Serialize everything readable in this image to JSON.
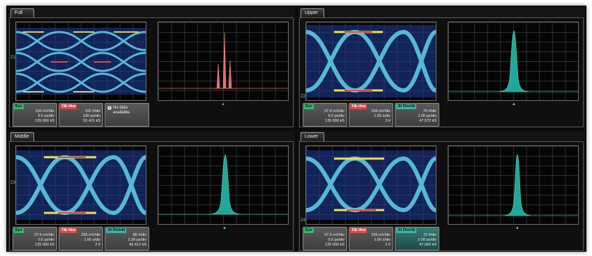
{
  "colors": {
    "accent_green": "#2fbf71",
    "accent_red": "#e04848",
    "accent_teal": "#3ab8a8",
    "hist_teal": "#1fa89a",
    "hist_red": "#e86a6a"
  },
  "icons": {
    "info": "info-icon"
  },
  "quadrants": [
    {
      "tab": "Full",
      "hist_color": "red",
      "marker_ref": "Z1",
      "readouts": [
        {
          "tag": "Eye",
          "lines": [
            "100 mV/div",
            "5.5 ps/div",
            "125 000 kS"
          ]
        },
        {
          "tag": "TIE Hist",
          "lines": [
            "102 #/div",
            "100 ps/div",
            "53 421 kS"
          ]
        },
        {
          "type": "nodata",
          "lines": [
            "No data",
            "available."
          ]
        }
      ]
    },
    {
      "tab": "Upper",
      "hist_color": "teal",
      "marker_ref": "Z2",
      "readouts": [
        {
          "tag": "Eye",
          "lines": [
            "37.4 mV/div",
            "5.5 ps/div",
            "125 000 kS"
          ]
        },
        {
          "tag": "TIE Hist",
          "lines": [
            "336 mV/div",
            "1.00 s/div",
            "2 #"
          ]
        },
        {
          "tag": "Jit Distrib",
          "lines": [
            "70 #/div",
            "2.00 ps/div",
            "47.572 kS"
          ]
        }
      ]
    },
    {
      "tab": "Middle",
      "hist_color": "teal",
      "marker_ref": "Z3",
      "readouts": [
        {
          "tag": "Eye",
          "lines": [
            "37.6 mV/div",
            "0.5 ps/div",
            "125 000 kS"
          ]
        },
        {
          "tag": "TIE Hist",
          "lines": [
            "336 mV/div",
            "1.00 s/div",
            "2 #"
          ]
        },
        {
          "tag": "Jit Distrib",
          "lines": [
            "86 #/div",
            "2.30 ps/div",
            "43.412 kS"
          ]
        }
      ]
    },
    {
      "tab": "Lower",
      "hist_color": "teal",
      "marker_ref": "Z4",
      "readouts": [
        {
          "tag": "Eye",
          "lines": [
            "37.6 mV/div",
            "0.5 ps/div",
            "125 000 kS"
          ]
        },
        {
          "tag": "TIE Hist",
          "lines": [
            "336 mV/div",
            "1.00 s/div",
            "2 #"
          ]
        },
        {
          "tag": "Jit Distrib",
          "lines": [
            "72 #/div",
            "2.00 ps/div",
            "47.600 kS"
          ]
        }
      ]
    }
  ]
}
